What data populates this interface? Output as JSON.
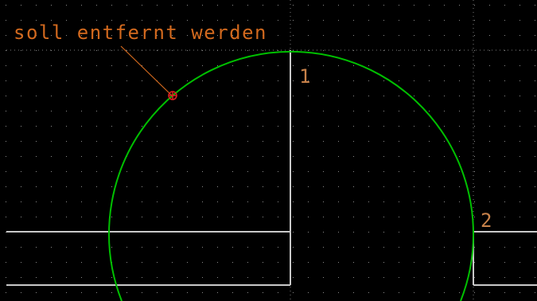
{
  "canvas": {
    "background_color": "#000000",
    "grid_color": "#8a8a8a",
    "major_grid_color": "#7a7a7a"
  },
  "annotation": {
    "text": "soll entfernt werden",
    "color": "#d2691e"
  },
  "point_labels": [
    {
      "text": "1",
      "color": "#c8824a"
    },
    {
      "text": "2",
      "color": "#c8824a"
    }
  ],
  "geometry": {
    "arc_color": "#00c000",
    "line_color": "#c8c8c8",
    "marker_color": "#e02020"
  },
  "icons": {
    "marker": "crosshair-marker-icon"
  }
}
